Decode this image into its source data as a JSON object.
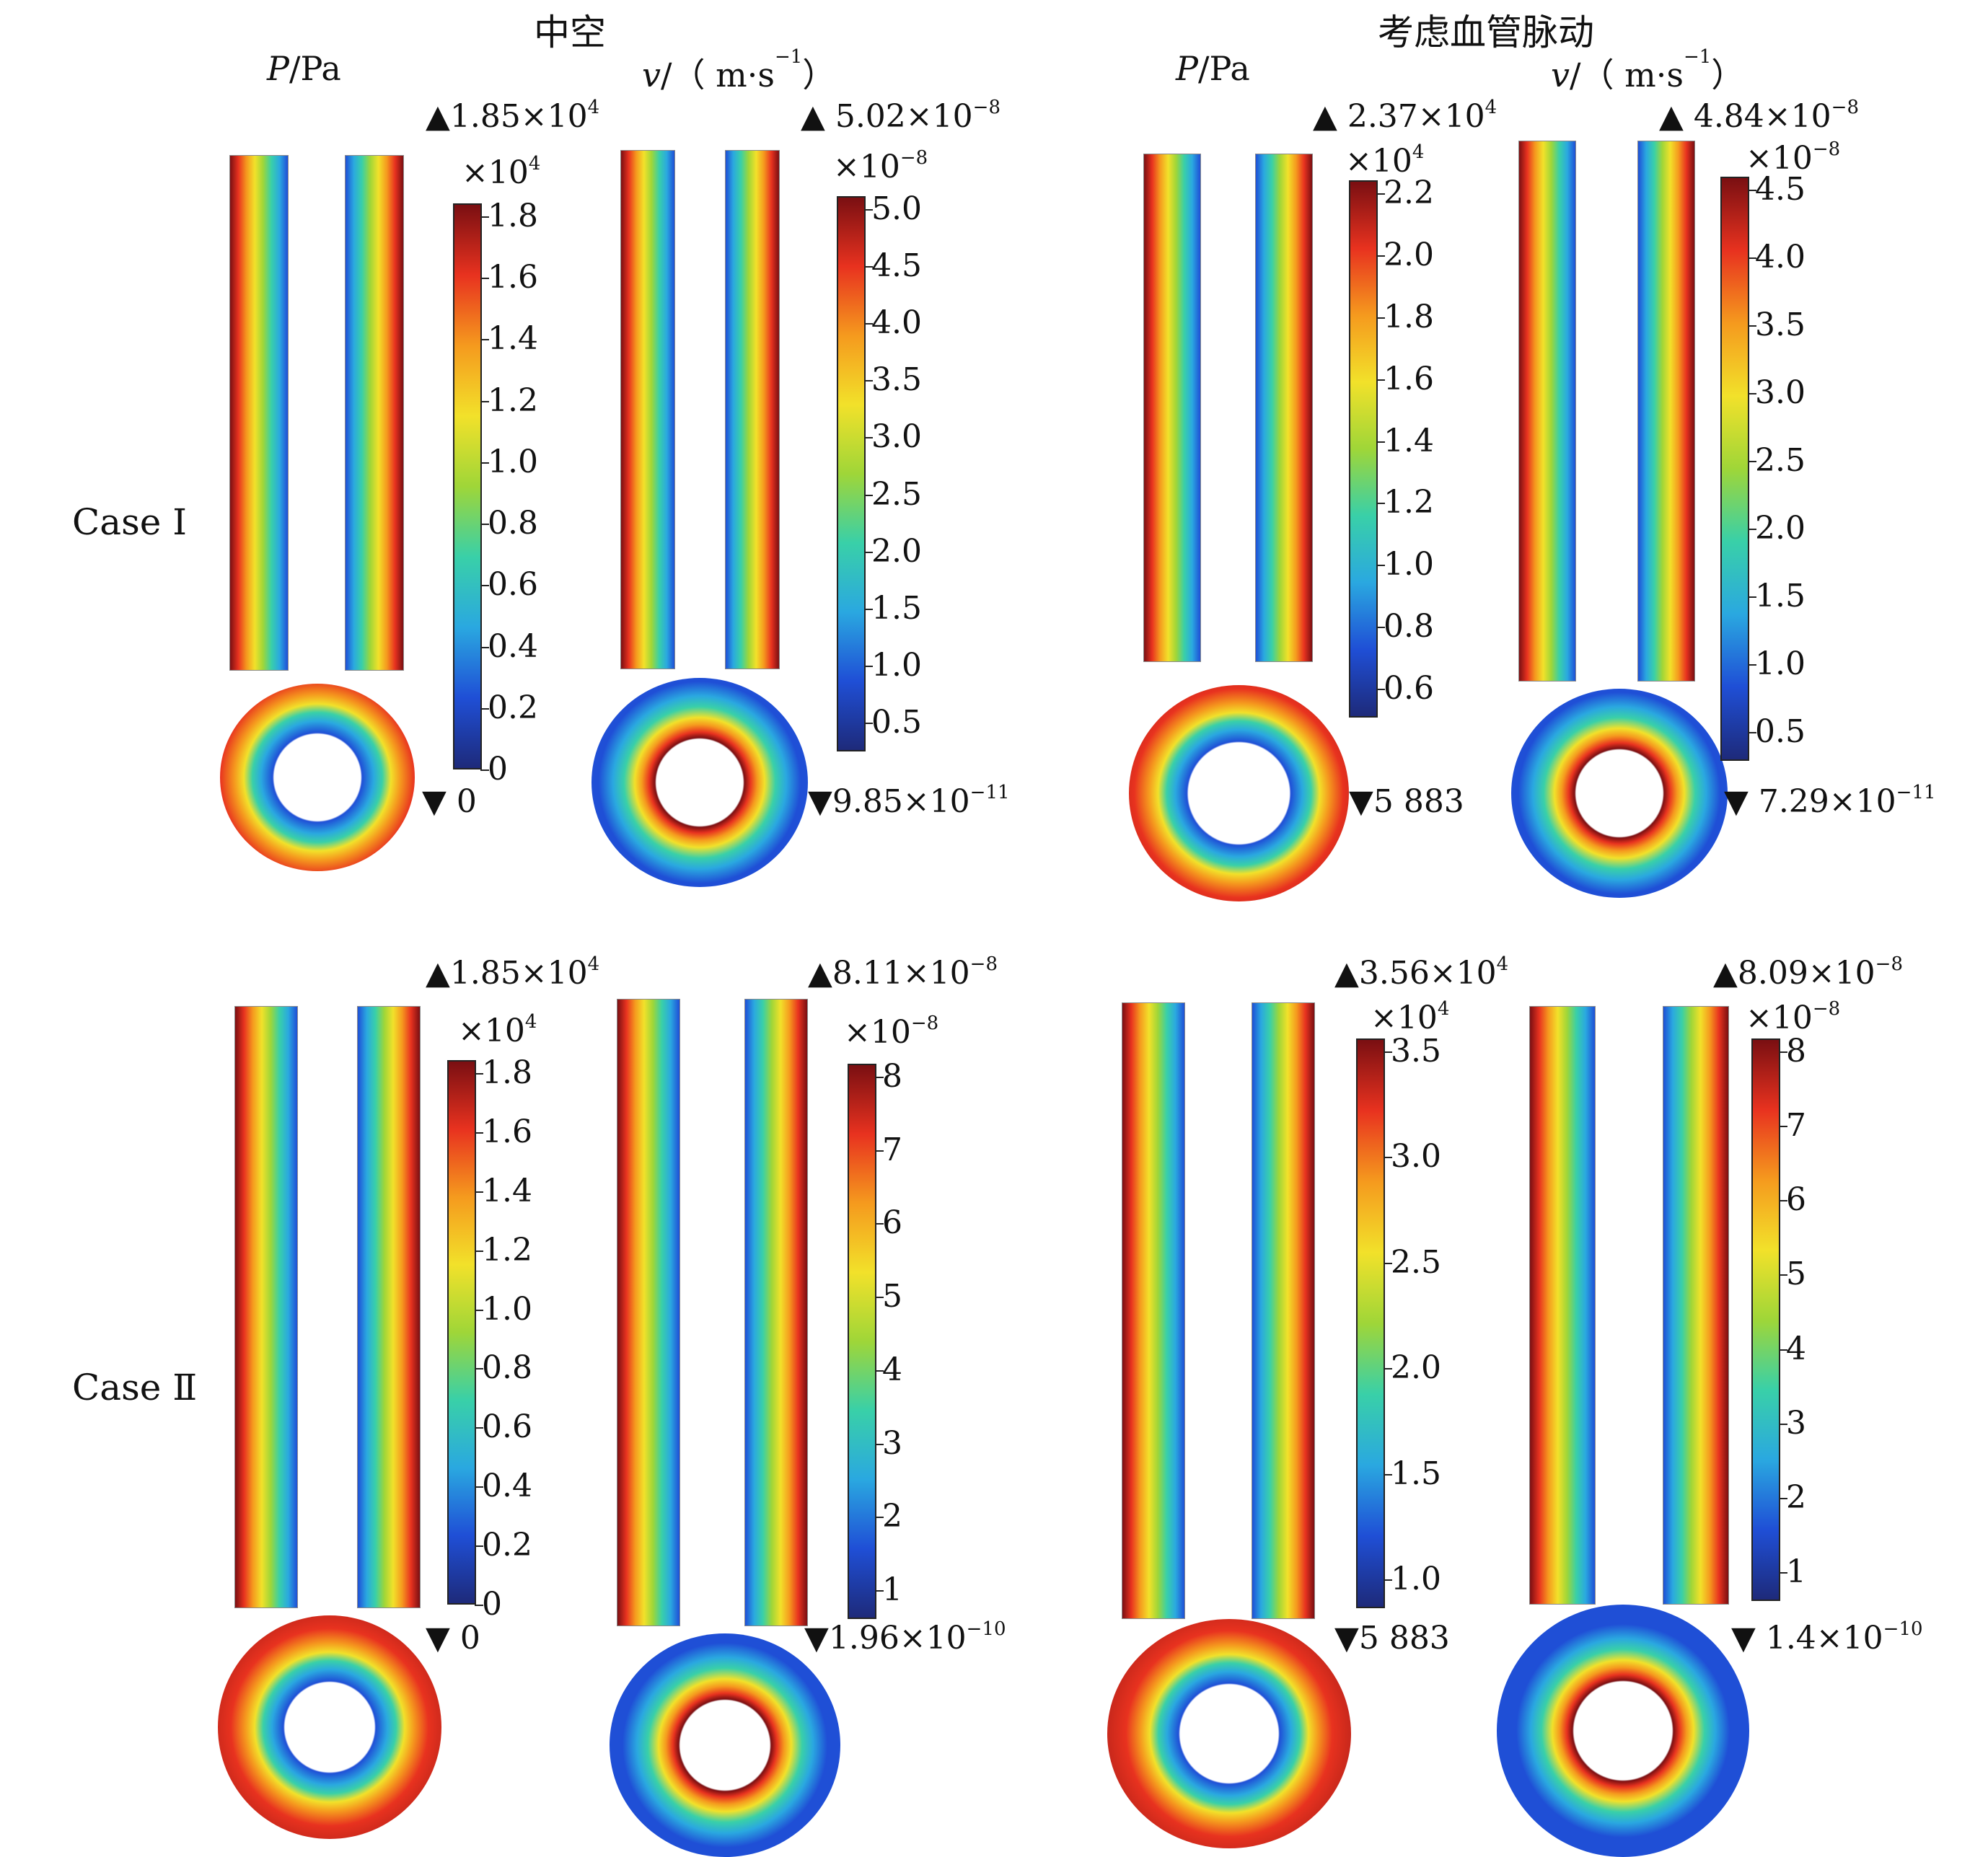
{
  "group_titles": [
    "中空",
    "考虑血管脉动"
  ],
  "col_headers": {
    "P": {
      "italic": "P",
      "rest": "/Pa"
    },
    "v": {
      "italic": "v",
      "rest": "/（ m·s",
      "sup": "−1",
      "close": "）"
    }
  },
  "case_labels": [
    "Case Ⅰ",
    "Case Ⅱ"
  ],
  "colormap": [
    "#1e2a7a",
    "#1f4fd6",
    "#2aa8e0",
    "#39d0a8",
    "#9fd638",
    "#f2e12a",
    "#f59a1e",
    "#e8321f",
    "#7a0f12"
  ],
  "panels": [
    {
      "id": "c1-hollow-P",
      "max": "▲1.85×10",
      "max_sup": "4",
      "min": "▼ 0",
      "min_sup": "",
      "mul": "×10",
      "mul_sup": "4",
      "ticks": [
        "1.8",
        "1.6",
        "1.4",
        "1.2",
        "1.0",
        "0.8",
        "0.6",
        "0.4",
        "0.2",
        "0"
      ],
      "tube_field": "P",
      "disk_field": "P"
    },
    {
      "id": "c1-hollow-v",
      "max": "▲ 5.02×10",
      "max_sup": "−8",
      "min": "▼9.85×10",
      "min_sup": "−11",
      "mul": "×10",
      "mul_sup": "−8",
      "ticks": [
        "5.0",
        "4.5",
        "4.0",
        "3.5",
        "3.0",
        "2.5",
        "2.0",
        "1.5",
        "1.0",
        "0.5"
      ],
      "tube_field": "v",
      "disk_field": "v"
    },
    {
      "id": "c1-pulse-P",
      "max": "▲ 2.37×10",
      "max_sup": "4",
      "min": "▼5 883",
      "min_sup": "",
      "mul": "×10",
      "mul_sup": "4",
      "ticks": [
        "2.2",
        "2.0",
        "1.8",
        "1.6",
        "1.4",
        "1.2",
        "1.0",
        "0.8",
        "0.6"
      ],
      "tube_field": "P",
      "disk_field": "P"
    },
    {
      "id": "c1-pulse-v",
      "max": "▲ 4.84×10",
      "max_sup": "−8",
      "min": "▼ 7.29×10",
      "min_sup": "−11",
      "mul": "×10",
      "mul_sup": "−8",
      "ticks": [
        "4.5",
        "4.0",
        "3.5",
        "3.0",
        "2.5",
        "2.0",
        "1.5",
        "1.0",
        "0.5"
      ],
      "tube_field": "v",
      "disk_field": "v"
    },
    {
      "id": "c2-hollow-P",
      "max": "▲1.85×10",
      "max_sup": "4",
      "min": "▼ 0",
      "min_sup": "",
      "mul": "×10",
      "mul_sup": "4",
      "ticks": [
        "1.8",
        "1.6",
        "1.4",
        "1.2",
        "1.0",
        "0.8",
        "0.6",
        "0.4",
        "0.2",
        "0"
      ],
      "tube_field": "P",
      "disk_field": "P"
    },
    {
      "id": "c2-hollow-v",
      "max": "▲8.11×10",
      "max_sup": "−8",
      "min": "▼1.96×10",
      "min_sup": "−10",
      "mul": "×10",
      "mul_sup": "−8",
      "ticks": [
        "8",
        "7",
        "6",
        "5",
        "4",
        "3",
        "2",
        "1"
      ],
      "tube_field": "v",
      "disk_field": "v"
    },
    {
      "id": "c2-pulse-P",
      "max": "▲3.56×10",
      "max_sup": "4",
      "min": "▼5 883",
      "min_sup": "",
      "mul": "×10",
      "mul_sup": "4",
      "ticks": [
        "3.5",
        "3.0",
        "2.5",
        "2.0",
        "1.5",
        "1.0"
      ],
      "tube_field": "P",
      "disk_field": "P"
    },
    {
      "id": "c2-pulse-v",
      "max": "▲8.09×10",
      "max_sup": "−8",
      "min": "▼ 1.4×10",
      "min_sup": "−10",
      "mul": "×10",
      "mul_sup": "−8",
      "ticks": [
        "8",
        "7",
        "6",
        "5",
        "4",
        "3",
        "2",
        "1"
      ],
      "tube_field": "v",
      "disk_field": "v"
    }
  ]
}
